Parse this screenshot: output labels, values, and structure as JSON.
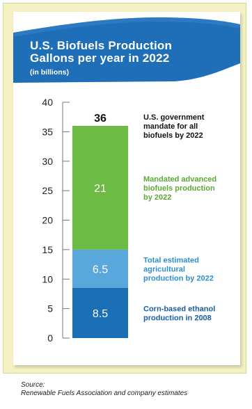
{
  "header": {
    "title_line1": "U.S. Biofuels Production",
    "title_line2": "Gallons per year in 2022",
    "subtitle": "(in billions)"
  },
  "chart_data": {
    "type": "bar",
    "stacked": true,
    "categories": [
      ""
    ],
    "ylim": [
      0,
      40
    ],
    "yticks": [
      0,
      5,
      10,
      15,
      20,
      25,
      30,
      35,
      40
    ],
    "series": [
      {
        "name": "Corn-based ethanol production in 2008",
        "values": [
          8.5
        ],
        "color": "#1a6fb5"
      },
      {
        "name": "Total estimated agricultural production by 2022",
        "values": [
          6.5
        ],
        "color": "#5aa7dc"
      },
      {
        "name": "Mandated advanced biofuels production by 2022",
        "values": [
          21
        ],
        "color": "#6cbb45"
      }
    ],
    "total_label": "36",
    "annotations": [
      {
        "text": "U.S. government mandate for all biofuels by 2022",
        "value": 36,
        "color": "#111111"
      },
      {
        "text": "Mandated advanced biofuels production by 2022",
        "value": 25.5,
        "color": "#5aaa32"
      },
      {
        "text": "Total estimated agricultural production by 2022",
        "value": 11.75,
        "color": "#2e8fd0"
      },
      {
        "text": "Corn-based ethanol production in 2008",
        "value": 4.25,
        "color": "#1a5fa3"
      }
    ],
    "grid": false
  },
  "colors": {
    "banner": "#1f6fb8",
    "panel": "#f4f1c4"
  },
  "source": {
    "label": "Source:",
    "text": "Renewable Fuels Association and company estimates"
  }
}
